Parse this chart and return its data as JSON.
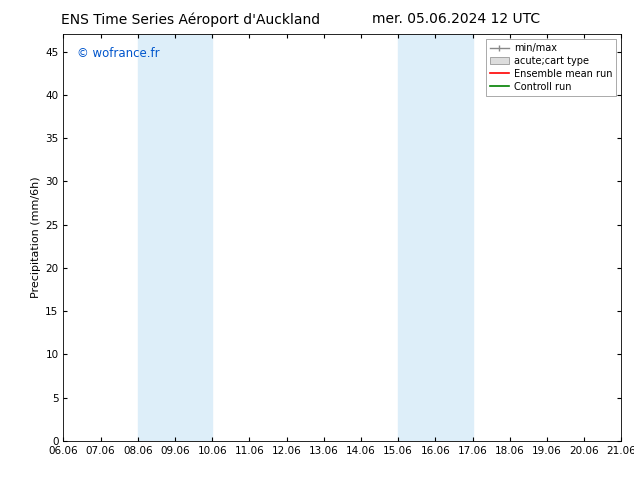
{
  "title_left": "ENS Time Series Aéroport d'Auckland",
  "title_right": "mer. 05.06.2024 12 UTC",
  "ylabel": "Precipitation (mm/6h)",
  "watermark": "© wofrance.fr",
  "ylim": [
    0,
    47
  ],
  "yticks": [
    0,
    5,
    10,
    15,
    20,
    25,
    30,
    35,
    40,
    45
  ],
  "xtick_labels": [
    "06.06",
    "07.06",
    "08.06",
    "09.06",
    "10.06",
    "11.06",
    "12.06",
    "13.06",
    "14.06",
    "15.06",
    "16.06",
    "17.06",
    "18.06",
    "19.06",
    "20.06",
    "21.06"
  ],
  "shaded_regions": [
    {
      "xmin": 2,
      "xmax": 4,
      "color": "#ddeef9"
    },
    {
      "xmin": 9,
      "xmax": 11,
      "color": "#ddeef9"
    }
  ],
  "bg_color": "#ffffff",
  "plot_bg_color": "#ffffff",
  "title_fontsize": 10,
  "axis_fontsize": 7.5,
  "ylabel_fontsize": 8,
  "watermark_color": "#0055cc",
  "watermark_fontsize": 8.5
}
